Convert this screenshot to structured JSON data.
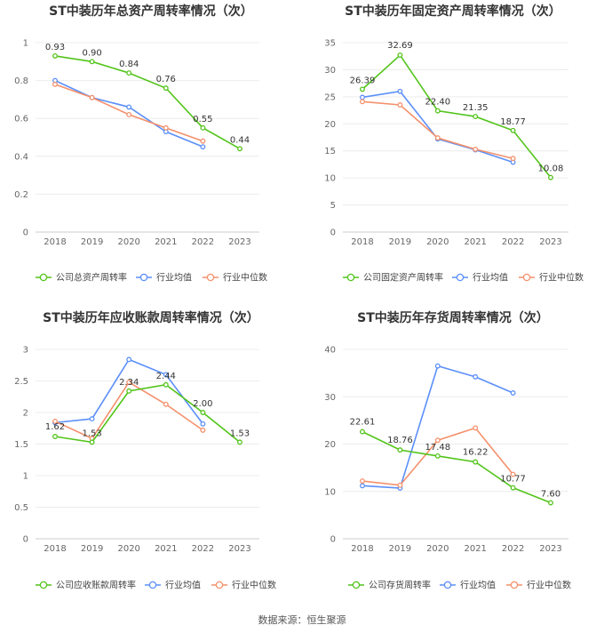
{
  "source": "数据来源：恒生聚源",
  "chart_data": [
    {
      "type": "line",
      "title": "ST中装历年总资产周转率情况（次）",
      "x": [
        "2018",
        "2019",
        "2020",
        "2021",
        "2022",
        "2023"
      ],
      "ylim": [
        0,
        1
      ],
      "yticks": [
        0,
        0.2,
        0.4,
        0.6,
        0.8,
        1
      ],
      "ytick_labels": [
        "0",
        "0.2",
        "0.4",
        "0.6",
        "0.8",
        "1"
      ],
      "grid": true,
      "legend": "bottom",
      "series": [
        {
          "name": "公司总资产周转率",
          "color": "#52c41a",
          "values": [
            0.93,
            0.9,
            0.84,
            0.76,
            0.55,
            0.44
          ],
          "labels": [
            "0.93",
            "0.90",
            "0.84",
            "0.76",
            "0.55",
            "0.44"
          ]
        },
        {
          "name": "行业均值",
          "color": "#5b8ff9",
          "values": [
            0.8,
            0.71,
            0.66,
            0.53,
            0.45,
            null
          ]
        },
        {
          "name": "行业中位数",
          "color": "#f4906b",
          "values": [
            0.78,
            0.71,
            0.62,
            0.55,
            0.48,
            null
          ]
        }
      ]
    },
    {
      "type": "line",
      "title": "ST中装历年固定资产周转率情况（次）",
      "x": [
        "2018",
        "2019",
        "2020",
        "2021",
        "2022",
        "2023"
      ],
      "ylim": [
        0,
        35
      ],
      "yticks": [
        0,
        5,
        10,
        15,
        20,
        25,
        30,
        35
      ],
      "ytick_labels": [
        "0",
        "5",
        "10",
        "15",
        "20",
        "25",
        "30",
        "35"
      ],
      "grid": true,
      "legend": "bottom",
      "series": [
        {
          "name": "公司固定资产周转率",
          "color": "#52c41a",
          "values": [
            26.39,
            32.69,
            22.4,
            21.35,
            18.77,
            10.08
          ],
          "labels": [
            "26.39",
            "32.69",
            "22.40",
            "21.35",
            "18.77",
            "10.08"
          ]
        },
        {
          "name": "行业均值",
          "color": "#5b8ff9",
          "values": [
            24.9,
            26.0,
            17.2,
            15.2,
            12.9,
            null
          ]
        },
        {
          "name": "行业中位数",
          "color": "#f4906b",
          "values": [
            24.1,
            23.5,
            17.4,
            15.3,
            13.6,
            null
          ]
        }
      ]
    },
    {
      "type": "line",
      "title": "ST中装历年应收账款周转率情况（次）",
      "x": [
        "2018",
        "2019",
        "2020",
        "2021",
        "2022",
        "2023"
      ],
      "ylim": [
        0,
        3
      ],
      "yticks": [
        0,
        0.5,
        1,
        1.5,
        2,
        2.5,
        3
      ],
      "ytick_labels": [
        "0",
        "0.5",
        "1",
        "1.5",
        "2",
        "2.5",
        "3"
      ],
      "grid": true,
      "legend": "bottom",
      "series": [
        {
          "name": "公司应收账款周转率",
          "color": "#52c41a",
          "values": [
            1.62,
            1.53,
            2.34,
            2.44,
            2.0,
            1.53
          ],
          "labels": [
            "1.62",
            "1.53",
            "2.34",
            "2.44",
            "2.00",
            "1.53"
          ]
        },
        {
          "name": "行业均值",
          "color": "#5b8ff9",
          "values": [
            1.84,
            1.9,
            2.84,
            2.6,
            1.82,
            null
          ]
        },
        {
          "name": "行业中位数",
          "color": "#f4906b",
          "values": [
            1.86,
            1.59,
            2.48,
            2.13,
            1.72,
            null
          ]
        }
      ]
    },
    {
      "type": "line",
      "title": "ST中装历年存货周转率情况（次）",
      "x": [
        "2018",
        "2019",
        "2020",
        "2021",
        "2022",
        "2023"
      ],
      "ylim": [
        0,
        40
      ],
      "yticks": [
        0,
        10,
        20,
        30,
        40
      ],
      "ytick_labels": [
        "0",
        "10",
        "20",
        "30",
        "40"
      ],
      "grid": true,
      "legend": "bottom",
      "series": [
        {
          "name": "公司存货周转率",
          "color": "#52c41a",
          "values": [
            22.61,
            18.76,
            17.48,
            16.22,
            10.77,
            7.6
          ],
          "labels": [
            "22.61",
            "18.76",
            "17.48",
            "16.22",
            "10.77",
            "7.60"
          ]
        },
        {
          "name": "行业均值",
          "color": "#5b8ff9",
          "values": [
            11.2,
            10.7,
            36.5,
            34.2,
            30.8,
            null
          ]
        },
        {
          "name": "行业中位数",
          "color": "#f4906b",
          "values": [
            12.2,
            11.3,
            20.8,
            23.4,
            13.6,
            null
          ]
        }
      ]
    }
  ]
}
